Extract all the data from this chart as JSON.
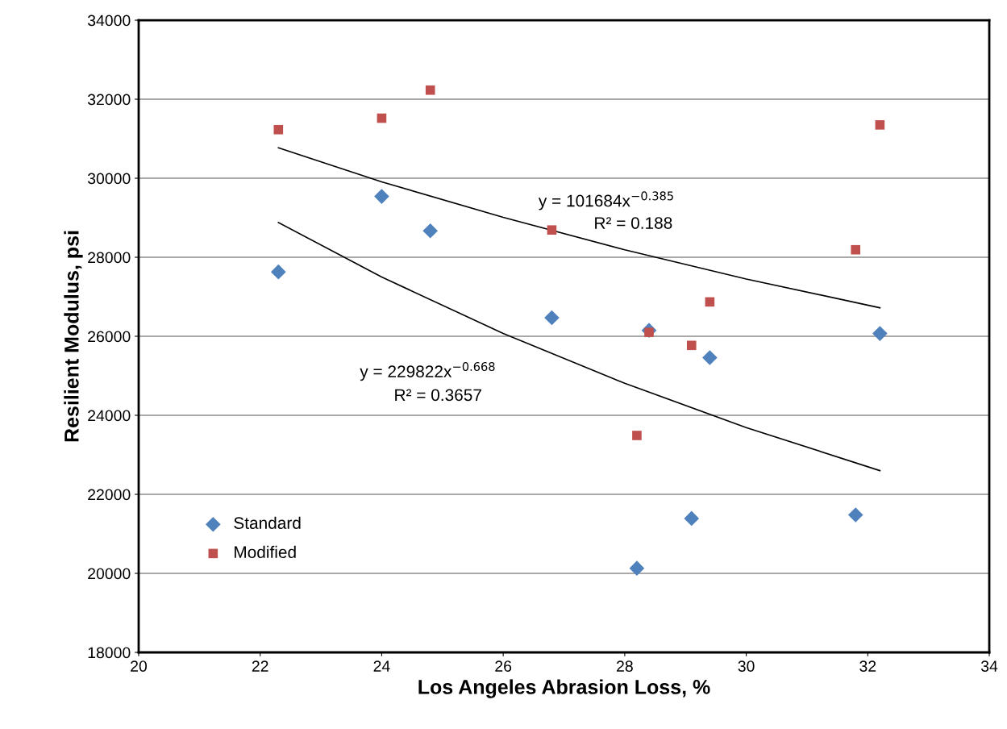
{
  "chart_data": {
    "type": "scatter",
    "xlabel": "Los Angeles Abrasion Loss, %",
    "ylabel": "Resilient Modulus, psi",
    "xlim": [
      20,
      34
    ],
    "xticks": [
      20,
      22,
      24,
      26,
      28,
      30,
      32,
      34
    ],
    "ylim": [
      18000,
      34000
    ],
    "yticks": [
      18000,
      20000,
      22000,
      24000,
      26000,
      28000,
      30000,
      32000,
      34000
    ],
    "grid": "y",
    "legend": "bottom left",
    "series": [
      {
        "name": "Standard",
        "color": "#4f81bd",
        "marker": "diamond",
        "x": [
          22.3,
          24.0,
          24.8,
          26.8,
          28.2,
          28.4,
          29.1,
          29.4,
          31.8,
          32.2
        ],
        "values": [
          27630,
          29540,
          28670,
          26470,
          20130,
          26150,
          21390,
          25460,
          21480,
          26070
        ]
      },
      {
        "name": "Modified",
        "color": "#c0504d",
        "marker": "square",
        "x": [
          22.3,
          24.0,
          24.8,
          26.8,
          28.2,
          28.4,
          29.1,
          29.4,
          31.8,
          32.2
        ],
        "values": [
          31230,
          31520,
          32230,
          28690,
          23490,
          26100,
          25770,
          26870,
          28190,
          31350
        ]
      },
      {
        "type": "line",
        "color": "#000000",
        "marker": "none",
        "x": [
          22.3,
          24,
          26,
          28,
          30,
          32.2
        ],
        "values": [
          30770,
          29910,
          29010,
          28190,
          27450,
          26720
        ]
      },
      {
        "type": "line",
        "color": "#000000",
        "marker": "none",
        "x": [
          22.3,
          24,
          26,
          28,
          30,
          32.2
        ],
        "values": [
          28880,
          27500,
          26070,
          24810,
          23690,
          22600
        ]
      }
    ],
    "annotations": [
      "y = 101684x$^{−0.385}$",
      "R² = 0.188",
      "y = 229822x$^{−0.668}$",
      "R² = 0.3657"
    ]
  }
}
